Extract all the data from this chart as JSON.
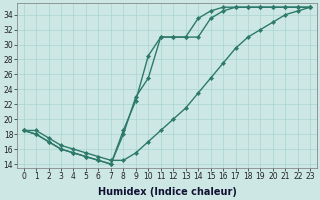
{
  "xlabel": "Humidex (Indice chaleur)",
  "bg_color": "#cde8e4",
  "grid_color": "#a8d5cf",
  "line_color": "#2d7a6a",
  "marker": "D",
  "marker_size": 2.2,
  "line_width": 1.0,
  "xlim": [
    -0.5,
    23.5
  ],
  "ylim": [
    13.5,
    35.5
  ],
  "xticks": [
    0,
    1,
    2,
    3,
    4,
    5,
    6,
    7,
    8,
    9,
    10,
    11,
    12,
    13,
    14,
    15,
    16,
    17,
    18,
    19,
    20,
    21,
    22,
    23
  ],
  "yticks": [
    14,
    16,
    18,
    20,
    22,
    24,
    26,
    28,
    30,
    32,
    34
  ],
  "series1_y": [
    18.5,
    18.0,
    17.0,
    16.0,
    15.5,
    15.0,
    14.5,
    14.0,
    18.0,
    23.0,
    25.5,
    31.0,
    31.0,
    31.0,
    33.5,
    34.5,
    35.0,
    35.0,
    35.0,
    35.0,
    35.0,
    35.0,
    35.0,
    35.0
  ],
  "series2_y": [
    18.5,
    18.0,
    17.0,
    16.0,
    15.5,
    15.0,
    14.5,
    14.0,
    18.5,
    22.5,
    28.5,
    31.0,
    31.0,
    31.0,
    31.0,
    33.5,
    34.5,
    35.0,
    35.0,
    35.0,
    35.0,
    35.0,
    35.0,
    35.0
  ],
  "series3_y": [
    18.5,
    18.5,
    17.5,
    16.5,
    16.0,
    15.5,
    15.0,
    14.5,
    14.5,
    15.5,
    17.0,
    18.5,
    20.0,
    21.5,
    23.5,
    25.5,
    27.5,
    29.5,
    31.0,
    32.0,
    33.0,
    34.0,
    34.5,
    35.0
  ],
  "tick_fontsize": 5.5,
  "xlabel_fontsize": 7
}
